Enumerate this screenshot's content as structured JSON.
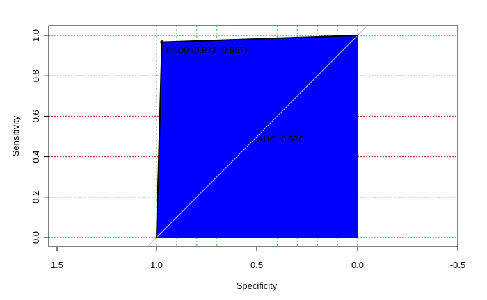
{
  "chart_data": {
    "type": "area",
    "xlabel": "Specificity",
    "ylabel": "Sensitivity",
    "x_reversed": true,
    "xlim": [
      1.5,
      -0.5
    ],
    "ylim": [
      0.0,
      1.0
    ],
    "x_ticks": [
      "1.5",
      "1.0",
      "0.5",
      "0.0",
      "-0.5"
    ],
    "y_ticks": [
      "0.0",
      "0.2",
      "0.4",
      "0.6",
      "0.8",
      "1.0"
    ],
    "grid_h": [
      0.0,
      0.2,
      0.4,
      0.6,
      0.8,
      1.0
    ],
    "grid_v": [
      1.0,
      0.9,
      0.8,
      0.7,
      0.6,
      0.5,
      0.4,
      0.3,
      0.2,
      0.1,
      0.0
    ],
    "roc_curve": {
      "specificity": [
        1.0,
        0.973,
        0.0
      ],
      "sensitivity": [
        0.0,
        0.967,
        1.0
      ]
    },
    "threshold_point": {
      "specificity": 0.973,
      "sensitivity": 0.967,
      "label": "0.500 (0.973, 0.967)"
    },
    "auc_label": "AUC: 0.970",
    "colors": {
      "fill": "#0000FF",
      "h_grid": "#B22222",
      "v_grid": "#32CD32",
      "diagonal": "#BEBEBE",
      "curve": "#000000"
    }
  }
}
